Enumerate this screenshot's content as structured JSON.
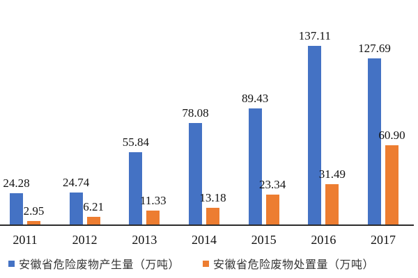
{
  "chart_data": {
    "type": "bar",
    "title": "",
    "xlabel": "",
    "ylabel": "",
    "categories": [
      "2011",
      "2012",
      "2013",
      "2014",
      "2015",
      "2016",
      "2017"
    ],
    "series": [
      {
        "name": "安徽省危险废物产生量（万吨）",
        "key": "production",
        "color": "#4472C4",
        "values": [
          24.28,
          24.74,
          55.84,
          78.08,
          89.43,
          137.11,
          127.69
        ],
        "labels": [
          "24.28",
          "24.74",
          "55.84",
          "78.08",
          "89.43",
          "137.11",
          "127.69"
        ]
      },
      {
        "name": "安徽省危险废物处置量（万吨）",
        "key": "disposal",
        "color": "#ED7D31",
        "values": [
          2.95,
          6.21,
          11.33,
          13.18,
          23.34,
          31.49,
          60.9
        ],
        "labels": [
          "2.95",
          "6.21",
          "11.33",
          "13.18",
          "23.34",
          "31.49",
          "60.90"
        ]
      }
    ],
    "ylim": [
      0,
      145
    ],
    "grid": false,
    "y_axis_visible": false,
    "legend_position": "bottom",
    "value_labels": "outside-end"
  },
  "legend": {
    "items": [
      {
        "label": "安徽省危险废物产生量（万吨）",
        "color": "#4472C4"
      },
      {
        "label": "安徽省危险废物处置量（万吨）",
        "color": "#ED7D31"
      }
    ]
  },
  "colors": {
    "production": "#4472C4",
    "disposal": "#ED7D31",
    "axis": "#2b2b2b",
    "text": "#111111"
  }
}
